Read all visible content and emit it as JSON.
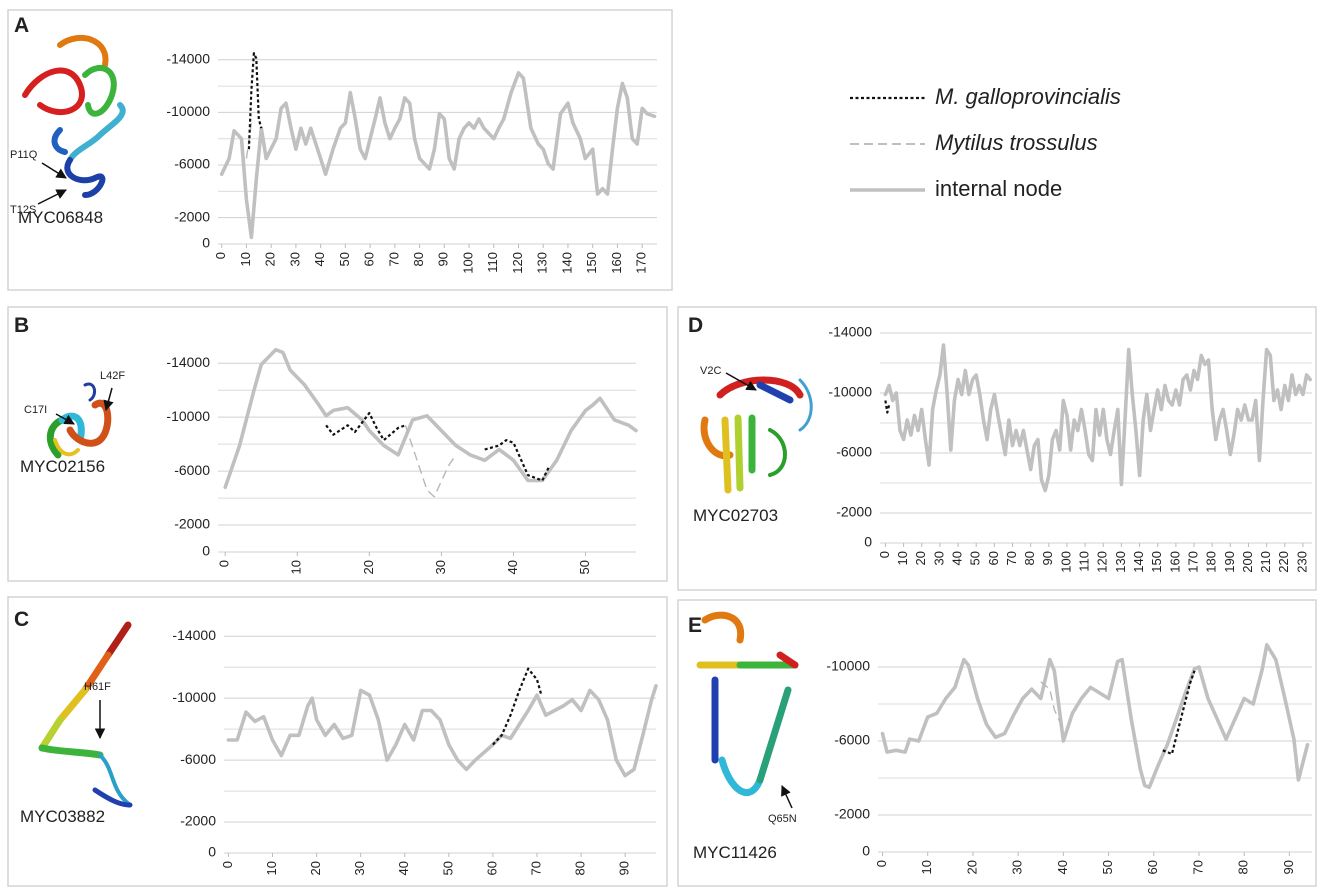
{
  "chart_data": [
    {
      "type": "line",
      "panel": "A",
      "protein": "MYC06848",
      "mutations": [
        "P11Q",
        "T12S"
      ],
      "legend": "right",
      "xlim": [
        -1.5,
        176
      ],
      "ylim": [
        0,
        -15500
      ],
      "grid": true,
      "minor_grid": [
        -4000,
        -8000,
        -12000
      ],
      "xticks": [
        0,
        10,
        20,
        30,
        40,
        50,
        60,
        70,
        80,
        90,
        100,
        110,
        120,
        130,
        140,
        150,
        160,
        170
      ],
      "yticks": [
        0,
        -2000,
        -6000,
        -10000,
        -14000
      ],
      "series": [
        {
          "name": "M. galloprovincialis",
          "color": "#111111",
          "dash": "dotted",
          "x": [
            11,
            12,
            13,
            14,
            15,
            16
          ],
          "values": [
            -7200,
            -11700,
            -14500,
            -14100,
            -9500,
            -8800
          ]
        },
        {
          "name": "Mytilus trossulus",
          "color": "#b8b8b8",
          "dash": "dashed",
          "x": [
            10,
            12
          ],
          "values": [
            -6500,
            -9200
          ]
        },
        {
          "name": "internal node",
          "color": "#c0c0c0",
          "dash": "solid",
          "x": [
            0,
            3,
            5,
            8,
            10,
            12,
            14,
            16,
            18,
            22,
            24,
            26,
            28,
            30,
            32,
            34,
            36,
            40,
            42,
            45,
            48,
            50,
            52,
            54,
            56,
            58,
            60,
            62,
            64,
            66,
            68,
            70,
            72,
            74,
            76,
            78,
            80,
            82,
            84,
            86,
            88,
            90,
            92,
            94,
            96,
            98,
            100,
            102,
            104,
            106,
            108,
            110,
            112,
            114,
            117,
            120,
            122,
            125,
            128,
            130,
            132,
            134,
            137,
            140,
            142,
            145,
            147,
            150,
            152,
            154,
            156,
            158,
            160,
            162,
            164,
            166,
            168,
            170,
            172,
            175
          ],
          "values": [
            -5300,
            -6500,
            -8600,
            -8000,
            -3400,
            -500,
            -4900,
            -8800,
            -6500,
            -8000,
            -10300,
            -10700,
            -8800,
            -7200,
            -8800,
            -7600,
            -8800,
            -6500,
            -5300,
            -7200,
            -8800,
            -9200,
            -11500,
            -9500,
            -7200,
            -6500,
            -8000,
            -9500,
            -11100,
            -9200,
            -8000,
            -8800,
            -9500,
            -11100,
            -10700,
            -8000,
            -6500,
            -6100,
            -5700,
            -7200,
            -9900,
            -9500,
            -6500,
            -5700,
            -8000,
            -8800,
            -9200,
            -8800,
            -9500,
            -8800,
            -8400,
            -8000,
            -8800,
            -9500,
            -11500,
            -13000,
            -12600,
            -8800,
            -7600,
            -7200,
            -6100,
            -5700,
            -9900,
            -10700,
            -9200,
            -8000,
            -6500,
            -7200,
            -3800,
            -4200,
            -3800,
            -7200,
            -10300,
            -12200,
            -11100,
            -8000,
            -7600,
            -10300,
            -9900,
            -9700
          ]
        }
      ]
    },
    {
      "type": "line",
      "panel": "B",
      "protein": "MYC02156",
      "mutations": [
        "C17I",
        "L42F"
      ],
      "xlim": [
        -1,
        57
      ],
      "ylim": [
        0,
        -15500
      ],
      "grid": true,
      "minor_grid": [
        -4000,
        -8000,
        -12000
      ],
      "xticks": [
        0,
        10,
        20,
        30,
        40,
        50
      ],
      "yticks": [
        0,
        -2000,
        -6000,
        -10000,
        -14000
      ],
      "series": [
        {
          "color": "#111111",
          "dash": "dotted",
          "x": [
            14,
            15,
            17,
            18,
            20,
            21,
            22,
            24,
            25,
            30,
            36,
            38,
            39,
            40,
            42,
            44,
            45
          ],
          "values": [
            -9400,
            -8700,
            -9400,
            -8900,
            -10300,
            -9200,
            -8300,
            -9200,
            -9400,
            null,
            -7600,
            -7900,
            -8300,
            -8100,
            -5700,
            -5300,
            -6400
          ]
        },
        {
          "color": "#b8b8b8",
          "dash": "dashed",
          "x": [
            25,
            28,
            29,
            31,
            32
          ],
          "values": [
            -9400,
            -4600,
            -4100,
            -6400,
            -7200
          ]
        },
        {
          "color": "#c0c0c0",
          "dash": "solid",
          "x": [
            0,
            2,
            4,
            5,
            7,
            8,
            9,
            11,
            13,
            14,
            15,
            17,
            19,
            20,
            22,
            24,
            26,
            28,
            30,
            32,
            34,
            36,
            38,
            40,
            42,
            44,
            46,
            48,
            50,
            51,
            52,
            54,
            56,
            57
          ],
          "values": [
            -4800,
            -7900,
            -12000,
            -13900,
            -15000,
            -14800,
            -13500,
            -12400,
            -10900,
            -10100,
            -10500,
            -10700,
            -9800,
            -9000,
            -7900,
            -7200,
            -9800,
            -10100,
            -9000,
            -7900,
            -7200,
            -6800,
            -7600,
            -6800,
            -5300,
            -5300,
            -6800,
            -9000,
            -10500,
            -10900,
            -11400,
            -9800,
            -9400,
            -9000
          ]
        }
      ]
    },
    {
      "type": "line",
      "panel": "C",
      "protein": "MYC03882",
      "mutations": [
        "H61F"
      ],
      "xlim": [
        -1,
        97
      ],
      "ylim": [
        0,
        -15500
      ],
      "grid": true,
      "minor_grid": [
        -4000,
        -8000,
        -12000
      ],
      "xticks": [
        0,
        10,
        20,
        30,
        40,
        50,
        60,
        70,
        80,
        90
      ],
      "yticks": [
        0,
        -2000,
        -6000,
        -10000,
        -14000
      ],
      "series": [
        {
          "color": "#111111",
          "dash": "dotted",
          "x": [
            60,
            62,
            64,
            66,
            68,
            70,
            71
          ],
          "values": [
            -7000,
            -7600,
            -8900,
            -10500,
            -11900,
            -11200,
            -10200
          ]
        },
        {
          "color": "#c0c0c0",
          "dash": "solid",
          "x": [
            0,
            2,
            4,
            6,
            8,
            10,
            12,
            14,
            16,
            18,
            19,
            20,
            22,
            24,
            26,
            28,
            30,
            32,
            34,
            36,
            38,
            40,
            42,
            44,
            46,
            48,
            50,
            52,
            54,
            56,
            58,
            60,
            62,
            64,
            66,
            68,
            70,
            72,
            74,
            76,
            78,
            80,
            82,
            84,
            86,
            88,
            90,
            92,
            94,
            96,
            97
          ],
          "values": [
            -7300,
            -7300,
            -9100,
            -8500,
            -8800,
            -7300,
            -6300,
            -7600,
            -7600,
            -9500,
            -10000,
            -8600,
            -7600,
            -8300,
            -7400,
            -7600,
            -10500,
            -10200,
            -8600,
            -6000,
            -7000,
            -8300,
            -7300,
            -9200,
            -9200,
            -8600,
            -7000,
            -6000,
            -5400,
            -6000,
            -6500,
            -7000,
            -7600,
            -7400,
            -8300,
            -9200,
            -10200,
            -8900,
            -9200,
            -9500,
            -9900,
            -9200,
            -10500,
            -9900,
            -8600,
            -6000,
            -5000,
            -5400,
            -7600,
            -9900,
            -10800
          ]
        }
      ]
    },
    {
      "type": "line",
      "panel": "D",
      "protein": "MYC02703",
      "mutations": [
        "V2C"
      ],
      "xlim": [
        -3,
        235
      ],
      "ylim": [
        0,
        -15000
      ],
      "grid": true,
      "minor_grid": [
        -4000,
        -8000,
        -12000
      ],
      "xticks": [
        0,
        10,
        20,
        30,
        40,
        50,
        60,
        70,
        80,
        90,
        100,
        110,
        120,
        130,
        140,
        150,
        160,
        170,
        180,
        190,
        200,
        210,
        220,
        230
      ],
      "yticks": [
        0,
        -2000,
        -6000,
        -10000,
        -14000
      ],
      "series": [
        {
          "color": "#111111",
          "dash": "dotted",
          "x": [
            0,
            1,
            2
          ],
          "values": [
            -9500,
            -8700,
            -9200
          ]
        },
        {
          "color": "#c0c0c0",
          "dash": "solid",
          "x": [
            0,
            2,
            4,
            6,
            8,
            10,
            12,
            14,
            16,
            18,
            20,
            22,
            24,
            26,
            28,
            30,
            32,
            34,
            36,
            38,
            40,
            42,
            44,
            46,
            48,
            50,
            52,
            54,
            56,
            58,
            60,
            62,
            64,
            66,
            68,
            70,
            72,
            74,
            76,
            78,
            80,
            82,
            84,
            86,
            88,
            90,
            92,
            94,
            96,
            98,
            100,
            102,
            104,
            106,
            108,
            110,
            112,
            114,
            116,
            118,
            120,
            122,
            124,
            126,
            128,
            130,
            132,
            134,
            136,
            138,
            140,
            142,
            144,
            146,
            148,
            150,
            152,
            154,
            156,
            158,
            160,
            162,
            164,
            166,
            168,
            170,
            172,
            174,
            176,
            178,
            180,
            182,
            184,
            186,
            188,
            190,
            192,
            194,
            196,
            198,
            200,
            202,
            204,
            206,
            208,
            210,
            212,
            214,
            216,
            218,
            220,
            222,
            224,
            226,
            228,
            230,
            232,
            234
          ],
          "values": [
            -9900,
            -10500,
            -9500,
            -10000,
            -7500,
            -6900,
            -8200,
            -7200,
            -8500,
            -7500,
            -8900,
            -6900,
            -5200,
            -8900,
            -10200,
            -11200,
            -13200,
            -9900,
            -6200,
            -9500,
            -10900,
            -9900,
            -11500,
            -9900,
            -10900,
            -11200,
            -9900,
            -8200,
            -6900,
            -8900,
            -9900,
            -8500,
            -7200,
            -5900,
            -8200,
            -6500,
            -7500,
            -6500,
            -7500,
            -6200,
            -4900,
            -6500,
            -6900,
            -4200,
            -3500,
            -4500,
            -6900,
            -7500,
            -6200,
            -9500,
            -8500,
            -6200,
            -8200,
            -7500,
            -8900,
            -7500,
            -5900,
            -5500,
            -8900,
            -7200,
            -8900,
            -6900,
            -5900,
            -7500,
            -8900,
            -3900,
            -8200,
            -12900,
            -9900,
            -7500,
            -4500,
            -8200,
            -9900,
            -7500,
            -8900,
            -10200,
            -8900,
            -10500,
            -9500,
            -9200,
            -10200,
            -9200,
            -10900,
            -11200,
            -10200,
            -11500,
            -10900,
            -12500,
            -11900,
            -12200,
            -8900,
            -6900,
            -8200,
            -8900,
            -7500,
            -5900,
            -7200,
            -8900,
            -8200,
            -9200,
            -8200,
            -8200,
            -9500,
            -5500,
            -9500,
            -12900,
            -12500,
            -9500,
            -10200,
            -8900,
            -10500,
            -9500,
            -11200,
            -9900,
            -10500,
            -9900,
            -11200,
            -10900
          ]
        }
      ]
    },
    {
      "type": "line",
      "panel": "E",
      "protein": "MYC11426",
      "mutations": [
        "Q65N"
      ],
      "xlim": [
        -1,
        95
      ],
      "ylim": [
        0,
        -12000
      ],
      "grid": true,
      "minor_grid": [
        -4000,
        -8000
      ],
      "xticks": [
        0,
        10,
        20,
        30,
        40,
        50,
        60,
        70,
        80,
        90
      ],
      "yticks": [
        0,
        -2000,
        -6000,
        -10000
      ],
      "series": [
        {
          "color": "#111111",
          "dash": "dotted",
          "x": [
            62,
            64,
            66,
            68,
            69
          ],
          "values": [
            -5500,
            -5300,
            -7200,
            -9100,
            -9800
          ]
        },
        {
          "color": "#b8b8b8",
          "dash": "dashed",
          "x": [
            35,
            37,
            38,
            40
          ],
          "values": [
            -9200,
            -8800,
            -7700,
            -6600
          ]
        },
        {
          "color": "#c0c0c0",
          "dash": "solid",
          "x": [
            0,
            1,
            3,
            5,
            6,
            8,
            10,
            12,
            14,
            16,
            18,
            19,
            21,
            23,
            25,
            27,
            29,
            31,
            33,
            35,
            37,
            38,
            40,
            42,
            44,
            46,
            48,
            50,
            52,
            53,
            55,
            57,
            58,
            59,
            61,
            63,
            65,
            67,
            69,
            70,
            72,
            74,
            76,
            78,
            80,
            82,
            84,
            85,
            87,
            89,
            90,
            91,
            92,
            94
          ],
          "values": [
            -6400,
            -5400,
            -5500,
            -5400,
            -6100,
            -6000,
            -7300,
            -7500,
            -8300,
            -8900,
            -10400,
            -10100,
            -8300,
            -6900,
            -6200,
            -6400,
            -7400,
            -8300,
            -8800,
            -8300,
            -10400,
            -9800,
            -6000,
            -7500,
            -8300,
            -8900,
            -8600,
            -8300,
            -10300,
            -10400,
            -7200,
            -4500,
            -3600,
            -3500,
            -4700,
            -5800,
            -7200,
            -8600,
            -9900,
            -10000,
            -8300,
            -7200,
            -6100,
            -7200,
            -8300,
            -8000,
            -9900,
            -11200,
            -10400,
            -8300,
            -7200,
            -6100,
            -3900,
            -5800
          ]
        }
      ]
    }
  ]
}
